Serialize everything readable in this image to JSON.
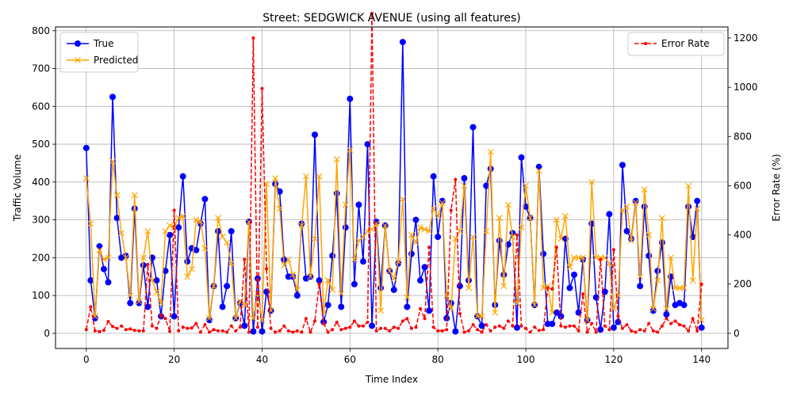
{
  "chart_data": {
    "type": "line",
    "title": "Street: SEDGWICK AVENUE (using all features)",
    "xlabel": "Time Index",
    "ylabel": "Traffic Volume",
    "y2label": "Error Rate (%)",
    "xlim": [
      -7,
      146
    ],
    "ylim": [
      -40,
      810
    ],
    "y2lim": [
      -61.5,
      1245
    ],
    "xticks": [
      0,
      20,
      40,
      60,
      80,
      100,
      120,
      140
    ],
    "yticks": [
      0,
      100,
      200,
      300,
      400,
      500,
      600,
      700,
      800
    ],
    "y2ticks": [
      0,
      200,
      400,
      600,
      800,
      1000,
      1200
    ],
    "grid": true,
    "legend_left": "upper-left",
    "legend_right": "upper-right",
    "series": [
      {
        "name": "True",
        "axis": "left",
        "color": "#0000ff",
        "marker": "circle",
        "values": [
          490,
          140,
          40,
          230,
          170,
          135,
          625,
          305,
          200,
          205,
          80,
          330,
          80,
          180,
          70,
          200,
          140,
          45,
          165,
          260,
          45,
          280,
          415,
          190,
          225,
          220,
          290,
          355,
          35,
          125,
          270,
          70,
          125,
          270,
          40,
          80,
          20,
          295,
          5,
          145,
          5,
          110,
          60,
          395,
          375,
          195,
          150,
          150,
          100,
          290,
          145,
          150,
          525,
          140,
          30,
          75,
          205,
          370,
          70,
          280,
          620,
          130,
          340,
          190,
          500,
          20,
          295,
          120,
          285,
          165,
          115,
          185,
          770,
          70,
          210,
          300,
          140,
          175,
          60,
          415,
          255,
          350,
          40,
          80,
          5,
          125,
          410,
          140,
          545,
          45,
          20,
          390,
          435,
          75,
          245,
          155,
          235,
          265,
          15,
          465,
          335,
          305,
          75,
          440,
          210,
          25,
          25,
          55,
          45,
          250,
          120,
          155,
          55,
          195,
          35,
          290,
          95,
          10,
          110,
          315,
          15,
          30,
          445,
          270,
          250,
          350,
          125,
          335,
          205,
          60,
          165,
          240,
          50,
          150,
          75,
          80,
          75,
          335,
          255,
          350,
          15
        ]
      },
      {
        "name": "Predicted",
        "axis": "left",
        "color": "#ffa500",
        "marker": "x",
        "values": [
          410,
          290,
          45,
          220,
          195,
          200,
          455,
          365,
          265,
          200,
          100,
          365,
          85,
          200,
          270,
          140,
          110,
          80,
          270,
          285,
          280,
          305,
          310,
          150,
          170,
          300,
          295,
          225,
          40,
          125,
          305,
          255,
          240,
          185,
          40,
          85,
          75,
          295,
          40,
          105,
          35,
          395,
          60,
          410,
          330,
          180,
          195,
          155,
          115,
          285,
          415,
          150,
          250,
          415,
          55,
          140,
          115,
          460,
          105,
          340,
          485,
          195,
          245,
          255,
          270,
          275,
          290,
          60,
          285,
          165,
          145,
          190,
          355,
          95,
          260,
          240,
          280,
          275,
          270,
          330,
          310,
          345,
          100,
          65,
          250,
          270,
          390,
          120,
          255,
          45,
          45,
          270,
          480,
          55,
          305,
          125,
          340,
          255,
          80,
          280,
          390,
          305,
          75,
          430,
          120,
          125,
          55,
          300,
          250,
          310,
          175,
          200,
          200,
          200,
          35,
          400,
          200,
          200,
          200,
          185,
          65,
          100,
          325,
          335,
          245,
          345,
          150,
          380,
          260,
          65,
          140,
          305,
          65,
          200,
          120,
          120,
          120,
          390,
          140,
          330,
          35
        ]
      },
      {
        "name": "Error Rate",
        "axis": "right",
        "color": "#ff0000",
        "marker": "dot",
        "values": [
          15,
          108,
          10,
          7,
          12,
          48,
          28,
          20,
          30,
          15,
          18,
          12,
          10,
          10,
          280,
          30,
          20,
          75,
          60,
          8,
          500,
          10,
          25,
          20,
          22,
          40,
          5,
          35,
          5,
          15,
          10,
          10,
          5,
          30,
          10,
          25,
          300,
          5,
          1200,
          25,
          995,
          262,
          20,
          5,
          10,
          30,
          10,
          5,
          10,
          5,
          60,
          5,
          50,
          200,
          40,
          5,
          15,
          45,
          15,
          20,
          25,
          50,
          30,
          30,
          45,
          1300,
          10,
          20,
          20,
          10,
          25,
          20,
          50,
          60,
          20,
          25,
          100,
          60,
          350,
          25,
          10,
          10,
          15,
          500,
          625,
          80,
          5,
          10,
          35,
          15,
          5,
          35,
          10,
          25,
          30,
          20,
          50,
          30,
          400,
          30,
          20,
          5,
          25,
          12,
          15,
          185,
          180,
          350,
          30,
          25,
          30,
          30,
          10,
          160,
          5,
          40,
          5,
          300,
          30,
          15,
          340,
          70,
          20,
          35,
          10,
          5,
          15,
          10,
          40,
          10,
          5,
          30,
          60,
          40,
          50,
          35,
          30,
          10,
          60,
          10,
          200
        ]
      }
    ]
  }
}
